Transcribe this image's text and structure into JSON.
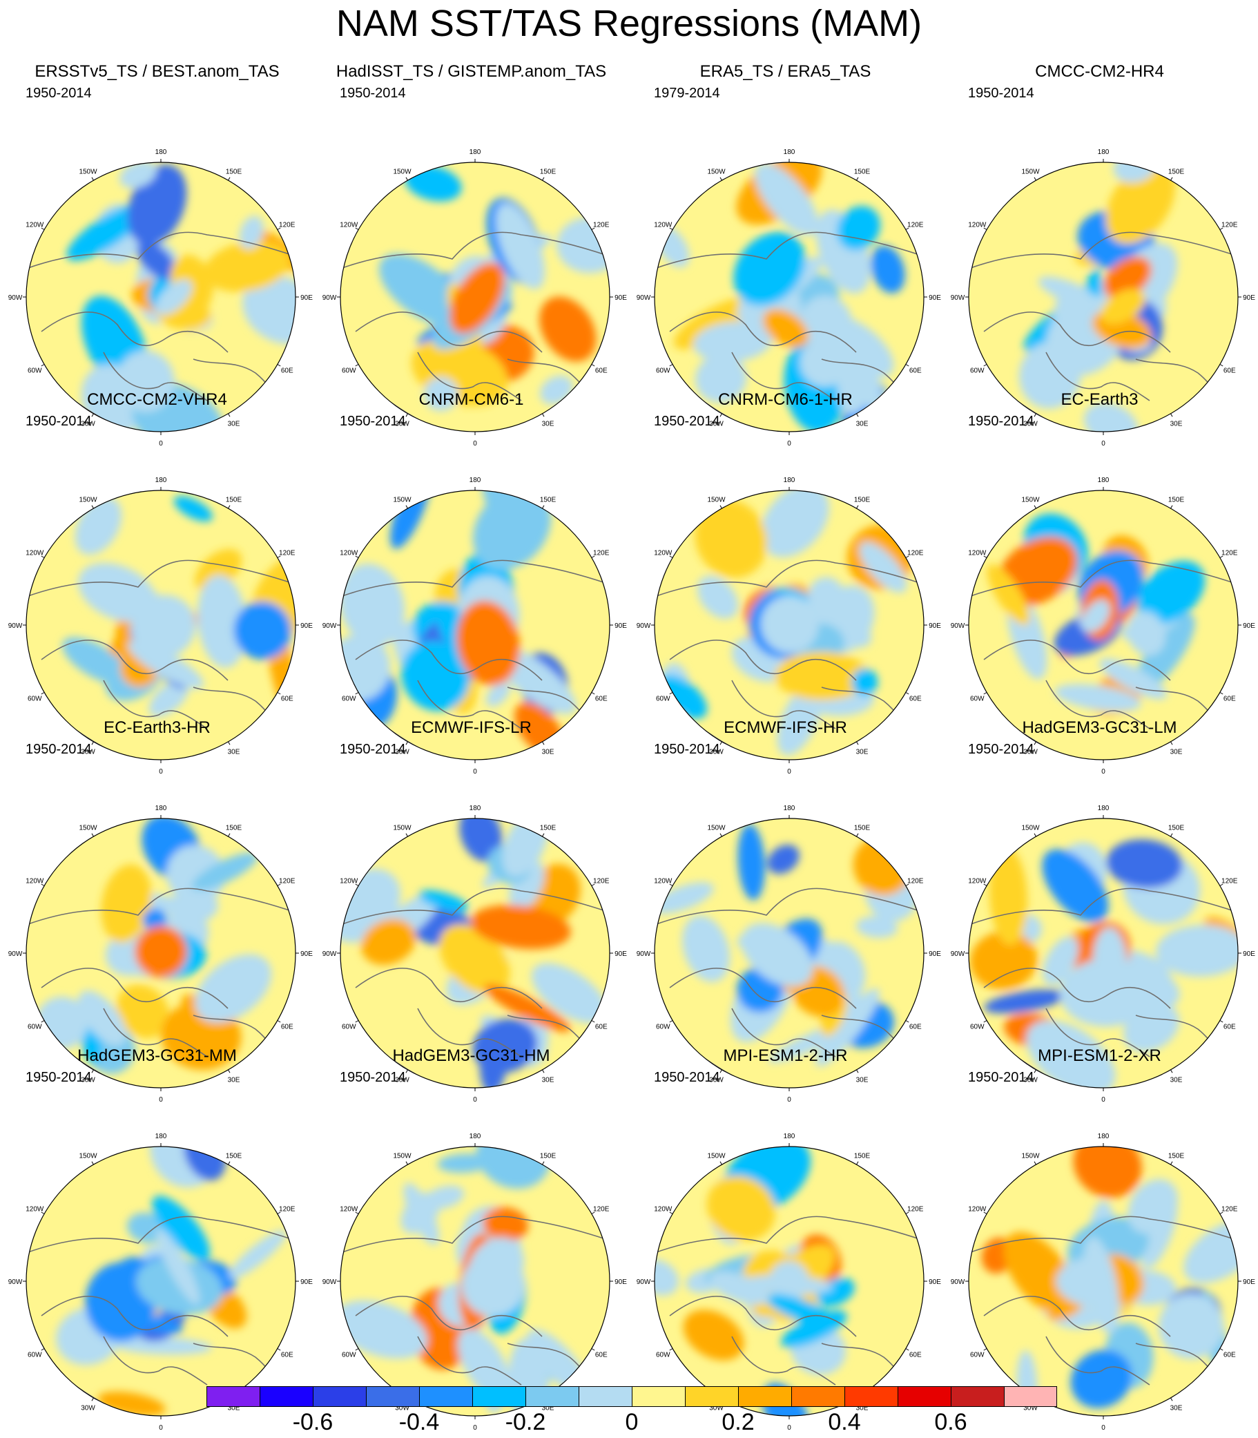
{
  "title": "NAM SST/TAS Regressions (MAM)",
  "longitude_labels": [
    "180",
    "150E",
    "120E",
    "90E",
    "60E",
    "30E",
    "0",
    "30W",
    "60W",
    "90W",
    "120W",
    "150W"
  ],
  "panels": [
    {
      "title": "ERSSTv5_TS / BEST.anom_TAS",
      "period": "1950-2014"
    },
    {
      "title": "HadISST_TS / GISTEMP.anom_TAS",
      "period": "1950-2014"
    },
    {
      "title": "ERA5_TS / ERA5_TAS",
      "period": "1979-2014"
    },
    {
      "title": "CMCC-CM2-HR4",
      "period": "1950-2014"
    },
    {
      "title": "CMCC-CM2-VHR4",
      "period": "1950-2014"
    },
    {
      "title": "CNRM-CM6-1",
      "period": "1950-2014"
    },
    {
      "title": "CNRM-CM6-1-HR",
      "period": "1950-2014"
    },
    {
      "title": "EC-Earth3",
      "period": "1950-2014"
    },
    {
      "title": "EC-Earth3-HR",
      "period": "1950-2014"
    },
    {
      "title": "ECMWF-IFS-LR",
      "period": "1950-2014"
    },
    {
      "title": "ECMWF-IFS-HR",
      "period": "1950-2014"
    },
    {
      "title": "HadGEM3-GC31-LM",
      "period": "1950-2014"
    },
    {
      "title": "HadGEM3-GC31-MM",
      "period": "1950-2014"
    },
    {
      "title": "HadGEM3-GC31-HM",
      "period": "1950-2014"
    },
    {
      "title": "MPI-ESM1-2-HR",
      "period": "1950-2014"
    },
    {
      "title": "MPI-ESM1-2-XR",
      "period": "1950-2014"
    }
  ],
  "colorbar": {
    "colors": [
      "#7f1ff0",
      "#1a00ff",
      "#2b3fe8",
      "#3a6ee8",
      "#1e90ff",
      "#00bfff",
      "#7ccaf0",
      "#b4dcf2",
      "#fff68f",
      "#ffd428",
      "#ffab00",
      "#ff7a00",
      "#ff3a00",
      "#e60000",
      "#c81e1e",
      "#ffb4b4"
    ],
    "labels": [
      "-0.6",
      "-0.4",
      "-0.2",
      "0",
      "0.2",
      "0.4",
      "0.6"
    ],
    "label_boundaries": [
      2,
      4,
      6,
      8,
      10,
      12,
      14
    ]
  }
}
